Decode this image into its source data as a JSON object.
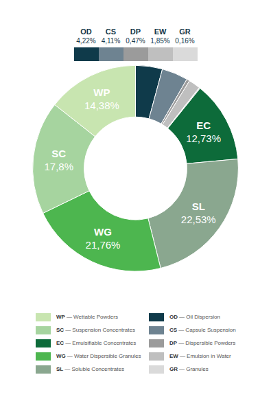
{
  "chart_data": {
    "type": "donut",
    "categories": [
      "OD",
      "CS",
      "DP",
      "EW",
      "GR",
      "EC",
      "SL",
      "WG",
      "SC",
      "WP"
    ],
    "values": [
      4.22,
      4.11,
      0.47,
      1.85,
      0.16,
      12.73,
      22.53,
      21.76,
      17.8,
      14.38
    ],
    "value_labels": [
      "4,22%",
      "4,11%",
      "0,47%",
      "1,85%",
      "0,16%",
      "12,73%",
      "22,53%",
      "21,76%",
      "17,8%",
      "14,38%"
    ],
    "colors": [
      "#0f3a4a",
      "#6e8391",
      "#9b9b9b",
      "#bfbfbf",
      "#dadada",
      "#0d6b3a",
      "#8aa78f",
      "#4db64f",
      "#a6d49f",
      "#c8e5b0"
    ],
    "legend_items": [
      "WP — Wettable Powders",
      "SC — Suspension Concentrates",
      "EC — Emulsifiable Concentrates",
      "WG — Water Dispersible Granules",
      "SL — Soluble Concentrates",
      "OD — Oil Dispersion",
      "CS — Capsule Suspension",
      "DP — Dispersible Powders",
      "EW — Emulsion in Water",
      "GR — Granules"
    ],
    "data_labels": true
  }
}
